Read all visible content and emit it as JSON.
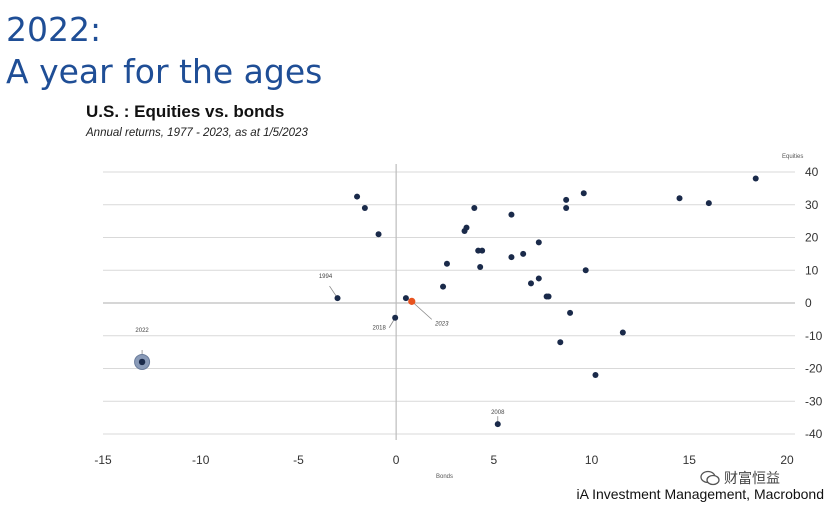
{
  "slide": {
    "title_line1": "2022:",
    "title_line2": "A year for the ages"
  },
  "source": "iA Investment Management, Macrobond",
  "watermark": "财富恒益",
  "colors": {
    "title": "#1f4e96",
    "points": "#1a2a4a",
    "highlight": "#e8531f",
    "halo": "#8a9bb8"
  },
  "chart_data": {
    "type": "scatter",
    "title": "U.S. : Equities vs. bonds",
    "subtitle": "Annual returns, 1977 - 2023, as at 1/5/2023",
    "xlabel": "Bonds",
    "ylabel": "Equities",
    "xlim": [
      -15,
      20
    ],
    "ylim": [
      -40,
      40
    ],
    "xticks": [
      -15,
      -10,
      -5,
      0,
      5,
      10,
      15,
      20
    ],
    "yticks": [
      40,
      30,
      20,
      10,
      0,
      -10,
      -20,
      -30,
      -40
    ],
    "grid": true,
    "series": [
      {
        "name": "Years",
        "points": [
          [
            -2.0,
            32.5
          ],
          [
            -1.6,
            29.0
          ],
          [
            -0.9,
            21.0
          ],
          [
            0.5,
            1.5
          ],
          [
            -0.05,
            -4.5
          ],
          [
            2.4,
            5.0
          ],
          [
            2.6,
            12.0
          ],
          [
            3.5,
            22.0
          ],
          [
            3.6,
            23.0
          ],
          [
            4.0,
            29.0
          ],
          [
            4.2,
            16.0
          ],
          [
            4.4,
            16.0
          ],
          [
            4.3,
            11.0
          ],
          [
            5.9,
            27.0
          ],
          [
            5.9,
            14.0
          ],
          [
            6.5,
            15.0
          ],
          [
            6.9,
            6.0
          ],
          [
            7.3,
            18.5
          ],
          [
            7.3,
            7.5
          ],
          [
            7.7,
            2.0
          ],
          [
            7.8,
            2.0
          ],
          [
            8.4,
            -12.0
          ],
          [
            8.7,
            31.5
          ],
          [
            8.7,
            29.0
          ],
          [
            8.9,
            -3.0
          ],
          [
            9.6,
            33.5
          ],
          [
            9.7,
            10.0
          ],
          [
            10.2,
            -22.0
          ],
          [
            11.6,
            -9.0
          ],
          [
            14.5,
            32.0
          ],
          [
            16.0,
            30.5
          ],
          [
            18.4,
            38.0
          ]
        ]
      }
    ],
    "highlighted": [
      {
        "label": "2022",
        "x": -13.0,
        "y": -18.0
      },
      {
        "label": "2023",
        "x": 0.8,
        "y": 0.5
      },
      {
        "label": "1994",
        "x": -3.0,
        "y": 1.5
      },
      {
        "label": "2018",
        "x": -0.05,
        "y": -4.5
      },
      {
        "label": "2008",
        "x": 5.2,
        "y": -37.0
      }
    ]
  }
}
